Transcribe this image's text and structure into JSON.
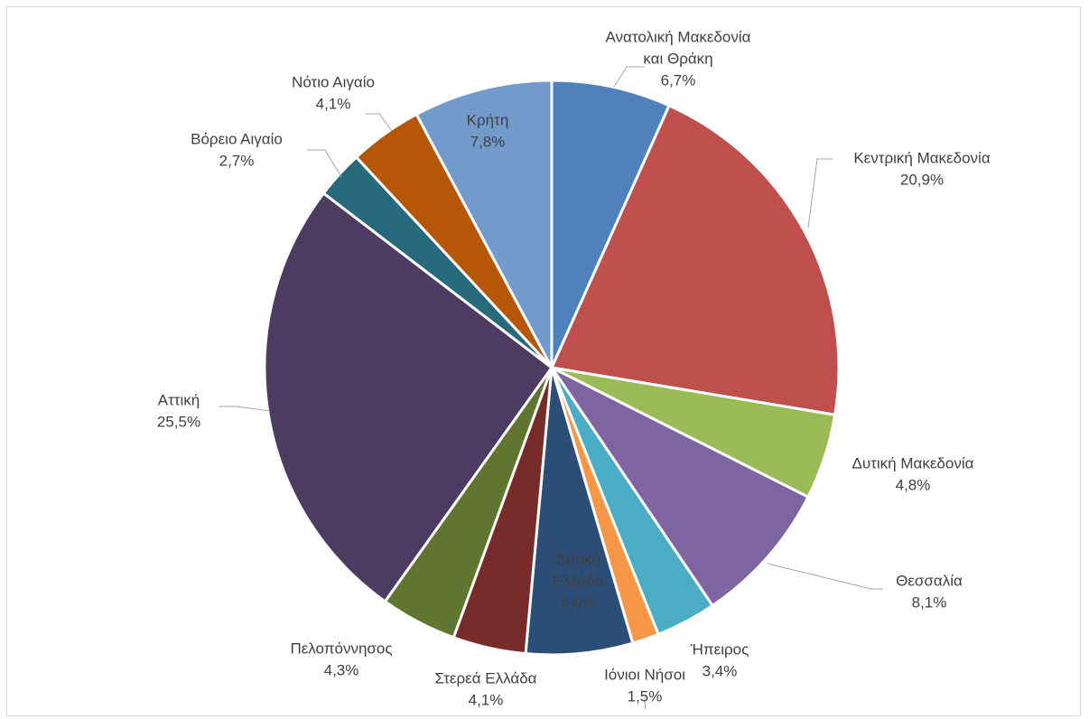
{
  "chart_data": {
    "type": "pie",
    "title": "",
    "slices": [
      {
        "label": [
          "Ανατολική Μακεδονία",
          "και Θράκη"
        ],
        "value": 6.7,
        "text": "6,7%",
        "color": "#4f81bd"
      },
      {
        "label": [
          "Κεντρική Μακεδονία"
        ],
        "value": 20.9,
        "text": "20,9%",
        "color": "#c0504d"
      },
      {
        "label": [
          "Δυτική Μακεδονία"
        ],
        "value": 4.8,
        "text": "4,8%",
        "color": "#9bbb59"
      },
      {
        "label": [
          "Θεσσαλία"
        ],
        "value": 8.1,
        "text": "8,1%",
        "color": "#8064a2"
      },
      {
        "label": [
          "Ήπειρος"
        ],
        "value": 3.4,
        "text": "3,4%",
        "color": "#4bacc6"
      },
      {
        "label": [
          "Ιόνιοι Νήσοι"
        ],
        "value": 1.5,
        "text": "1,5%",
        "color": "#f79646"
      },
      {
        "label": [
          "Δυτική",
          "Ελλάδα"
        ],
        "value": 6.0,
        "text": "6,0%",
        "color": "#2c4d75"
      },
      {
        "label": [
          "Στερεά Ελλάδα"
        ],
        "value": 4.1,
        "text": "4,1%",
        "color": "#772c2a"
      },
      {
        "label": [
          "Πελοπόννησος"
        ],
        "value": 4.3,
        "text": "4,3%",
        "color": "#5f7530"
      },
      {
        "label": [
          "Αττική"
        ],
        "value": 25.5,
        "text": "25,5%",
        "color": "#4d3b62"
      },
      {
        "label": [
          "Βόρειο Αιγαίο"
        ],
        "value": 2.7,
        "text": "2,7%",
        "color": "#276a7c"
      },
      {
        "label": [
          "Νότιο Αιγαίο"
        ],
        "value": 4.1,
        "text": "4,1%",
        "color": "#b65708"
      },
      {
        "label": [
          "Κρήτη"
        ],
        "value": 7.8,
        "text": "7,8%",
        "color": "#729aca"
      }
    ]
  }
}
